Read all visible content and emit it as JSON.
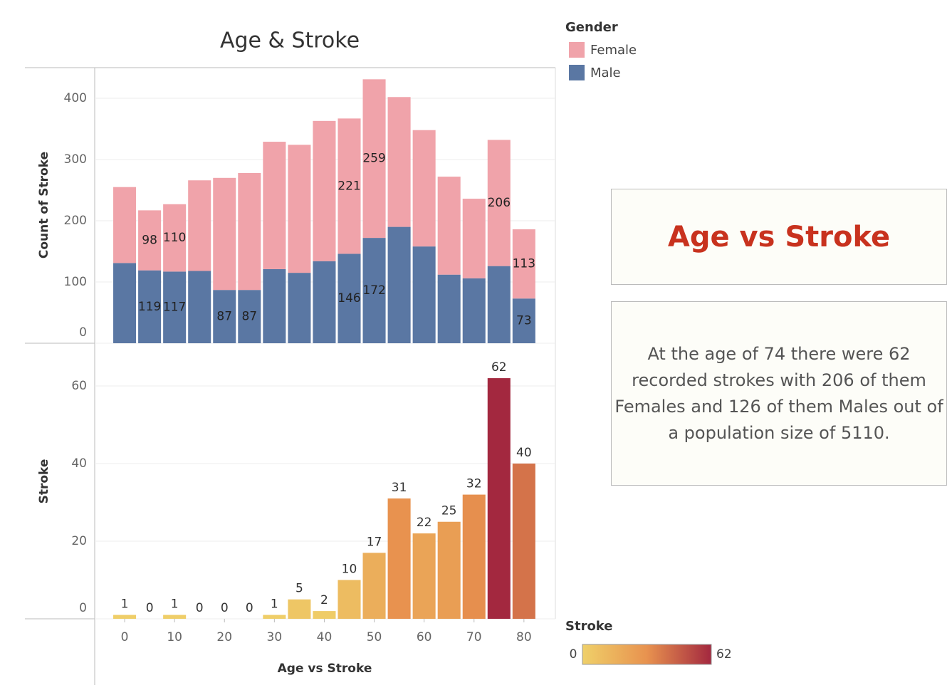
{
  "chart_data": [
    {
      "type": "stacked-bar",
      "title": "Age & Stroke",
      "ylabel": "Count of Stroke",
      "x": [
        0,
        5,
        10,
        15,
        20,
        25,
        30,
        35,
        40,
        45,
        50,
        55,
        60,
        65,
        70,
        75,
        80
      ],
      "xlim": [
        -6,
        86.3
      ],
      "ylim": [
        0,
        450
      ],
      "yticks": [
        0,
        100,
        200,
        300,
        400
      ],
      "grid": true,
      "legend": {
        "title": "Gender",
        "position": "top-right"
      },
      "series": [
        {
          "name": "Female",
          "color": "#f0a3aa",
          "values": [
            124,
            98,
            110,
            148,
            183,
            191,
            208,
            209,
            229,
            221,
            259,
            212,
            190,
            160,
            130,
            206,
            113
          ],
          "value_labels": [
            null,
            98,
            110,
            null,
            null,
            null,
            null,
            null,
            null,
            221,
            259,
            null,
            null,
            null,
            null,
            206,
            113
          ]
        },
        {
          "name": "Male",
          "color": "#5a77a3",
          "values": [
            131,
            119,
            117,
            118,
            87,
            87,
            121,
            115,
            134,
            146,
            172,
            190,
            158,
            112,
            106,
            126,
            73
          ],
          "value_labels": [
            null,
            119,
            117,
            null,
            87,
            87,
            null,
            null,
            null,
            146,
            172,
            null,
            null,
            null,
            null,
            null,
            73
          ]
        }
      ]
    },
    {
      "type": "bar",
      "ylabel": "Stroke",
      "xlabel": "Age vs Stroke",
      "x": [
        0,
        5,
        10,
        15,
        20,
        25,
        30,
        35,
        40,
        45,
        50,
        55,
        60,
        65,
        70,
        75,
        80
      ],
      "values": [
        1,
        0,
        1,
        0,
        0,
        0,
        1,
        5,
        2,
        10,
        17,
        31,
        22,
        25,
        32,
        62,
        40
      ],
      "xlim": [
        -6,
        86.3
      ],
      "xticks": [
        0,
        10,
        20,
        30,
        40,
        50,
        60,
        70,
        80
      ],
      "ylim": [
        0,
        71
      ],
      "yticks": [
        0,
        20,
        40,
        60
      ],
      "grid": true,
      "colorscale": [
        "#efd069",
        "#e8924f",
        "#a3283f"
      ],
      "colorbar": {
        "title": "Stroke",
        "range": [
          0,
          62
        ]
      }
    }
  ],
  "text_panel": {
    "heading": "Age vs Stroke",
    "body": "At the age of 74 there were 62 recorded strokes with 206 of them Females and 126 of them Males out of a population size of 5110."
  }
}
